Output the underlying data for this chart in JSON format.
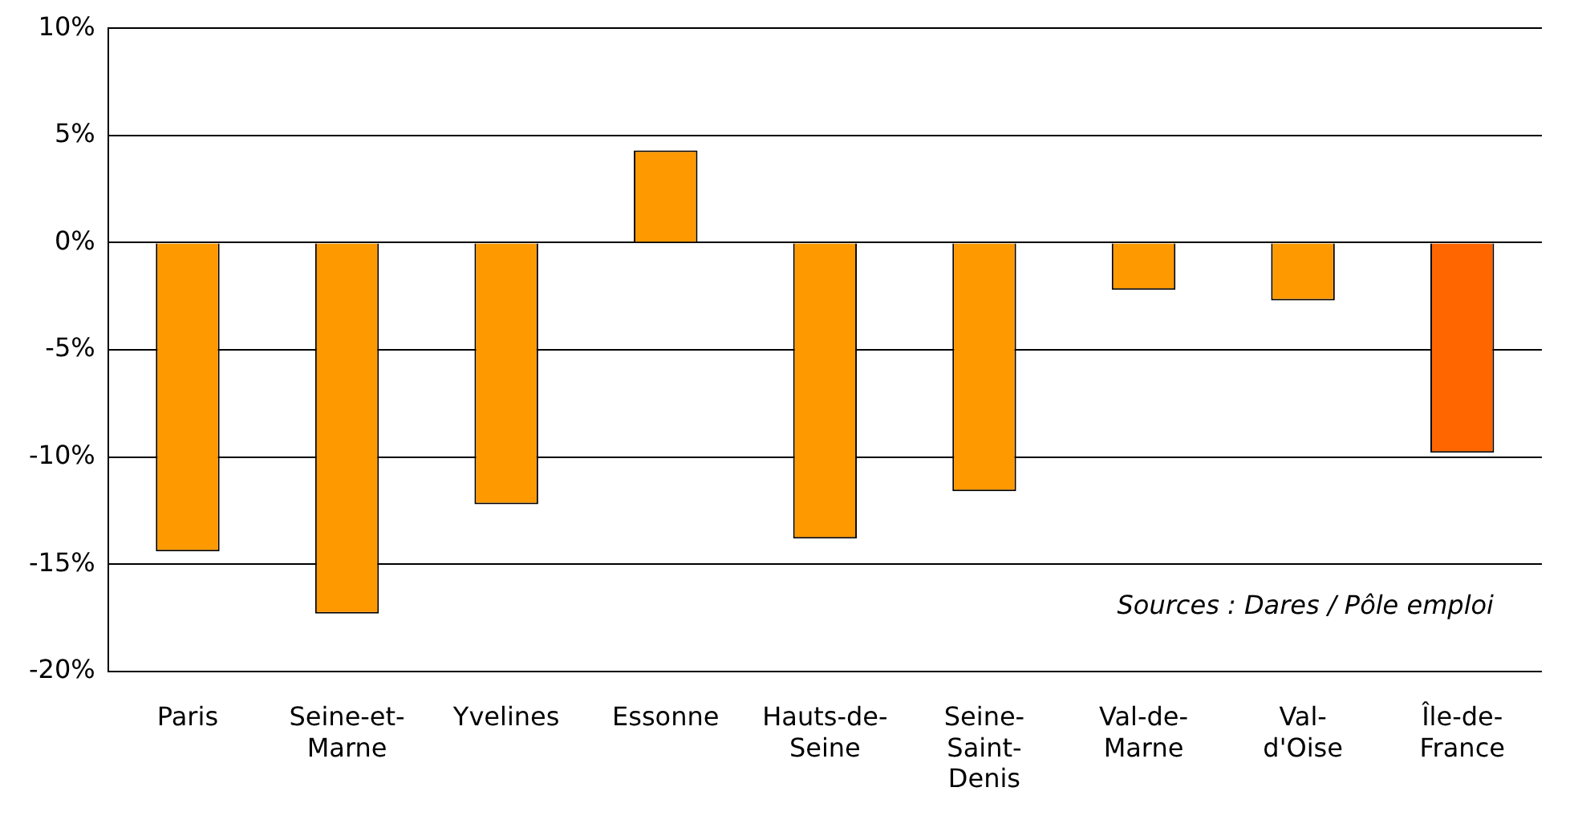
{
  "chart_data": {
    "type": "bar",
    "categories": [
      "Paris",
      "Seine-et-Marne",
      "Yvelines",
      "Essonne",
      "Hauts-de-Seine",
      "Seine-Saint-Denis",
      "Val-de-Marne",
      "Val-d'Oise",
      "Île-de-France"
    ],
    "values": [
      -14.4,
      -17.3,
      -12.2,
      4.3,
      -13.8,
      -11.6,
      -2.2,
      -2.7,
      -9.8
    ],
    "colors": [
      "#ff9900",
      "#ff9900",
      "#ff9900",
      "#ff9900",
      "#ff9900",
      "#ff9900",
      "#ff9900",
      "#ff9900",
      "#ff6600"
    ],
    "ylim": [
      -20,
      10
    ],
    "yticks": [
      {
        "value": -20,
        "label": "-20%"
      },
      {
        "value": -15,
        "label": "-15%"
      },
      {
        "value": -10,
        "label": "-10%"
      },
      {
        "value": -5,
        "label": "-5%"
      },
      {
        "value": 0,
        "label": "0%"
      },
      {
        "value": 5,
        "label": "5%"
      },
      {
        "value": 10,
        "label": "10%"
      }
    ],
    "grid": "y",
    "annotations": [
      "Sources : Dares / Pôle emploi"
    ]
  }
}
